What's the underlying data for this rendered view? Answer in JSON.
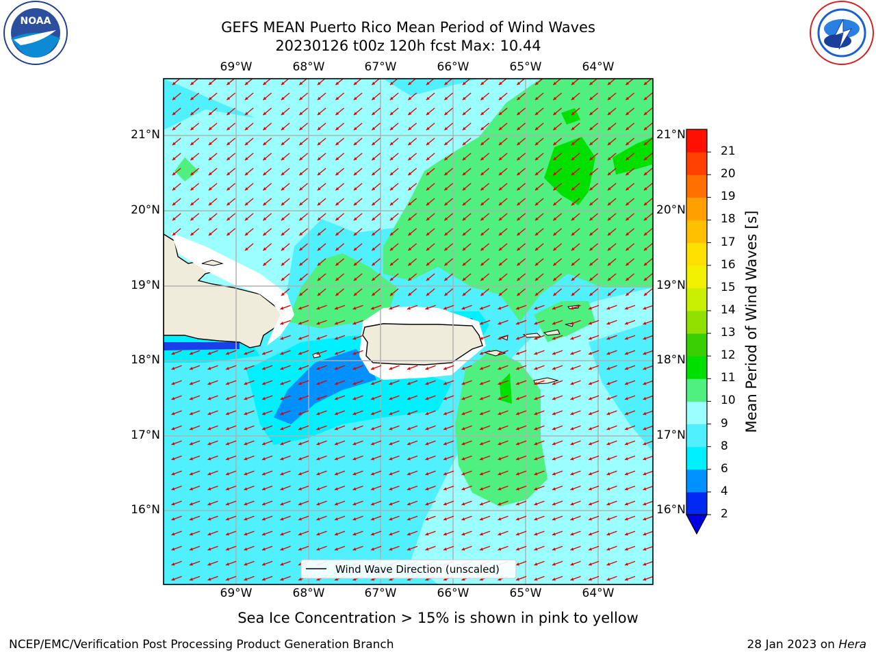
{
  "header": {
    "title_line1": "GEFS MEAN Puerto Rico Mean Period of Wind Waves",
    "title_line2": "20230126 t00z 120h fcst   Max: 10.44"
  },
  "logos": {
    "left": {
      "name": "noaa-logo",
      "text": "NOAA",
      "ring_text": "NATIONAL OCEANIC AND ATMOSPHERIC ADMINISTRATION · U.S. DEPARTMENT OF COMMERCE"
    },
    "right": {
      "name": "nws-logo",
      "ring_text": "NATIONAL WEATHER SERVICE"
    }
  },
  "map": {
    "lon_labels": [
      "69°W",
      "68°W",
      "67°W",
      "66°W",
      "65°W",
      "64°W"
    ],
    "lat_labels": [
      "21°N",
      "20°N",
      "19°N",
      "18°N",
      "17°N",
      "16°N"
    ],
    "legend_label": "Wind Wave Direction (unscaled)",
    "arrow_color": "#e00000",
    "land_color": "#efecdc"
  },
  "colorbar": {
    "label": "Mean Period of Wind Waves [s]",
    "ticks": [
      "2",
      "4",
      "6",
      "8",
      "9",
      "10",
      "11",
      "12",
      "13",
      "14",
      "15",
      "16",
      "17",
      "18",
      "19",
      "20",
      "21"
    ],
    "colors": [
      "#0028f0",
      "#0090ff",
      "#00f0ff",
      "#50f0ff",
      "#9cffff",
      "#50f080",
      "#00e000",
      "#38d000",
      "#90e000",
      "#c8f000",
      "#f0f000",
      "#ffe000",
      "#ffc000",
      "#ffa000",
      "#ff7000",
      "#ff4000",
      "#ff1000"
    ],
    "extend_color": "#0000e0"
  },
  "caption": "Sea Ice Concentration > 15% is shown in pink to yellow",
  "footer": {
    "left": "NCEP/EMC/Verification Post Processing Product Generation Branch",
    "right_prefix": "28 Jan 2023 on ",
    "right_host": "Hera"
  }
}
